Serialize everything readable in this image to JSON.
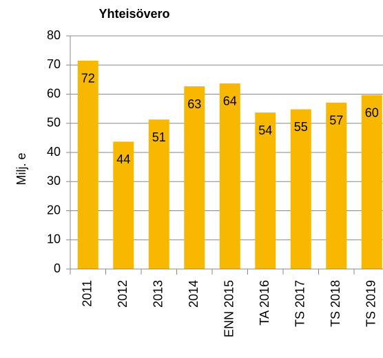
{
  "chart_data": {
    "type": "bar",
    "title": "Yhteisövero",
    "y_label": "Milj. e",
    "categories": [
      "2011",
      "2012",
      "2013",
      "2014",
      "ENN 2015",
      "TA 2016",
      "TS 2017",
      "TS 2018",
      "TS 2019"
    ],
    "values": [
      71.5,
      43.7,
      51.3,
      62.7,
      63.7,
      53.7,
      54.8,
      57.1,
      59.7
    ],
    "value_labels": [
      "72",
      "44",
      "51",
      "63",
      "64",
      "54",
      "55",
      "57",
      "60"
    ],
    "color": "#f9b800",
    "ylim": [
      0,
      80
    ],
    "yticks": [
      0,
      10,
      20,
      30,
      40,
      50,
      60,
      70,
      80
    ],
    "grid": true
  }
}
